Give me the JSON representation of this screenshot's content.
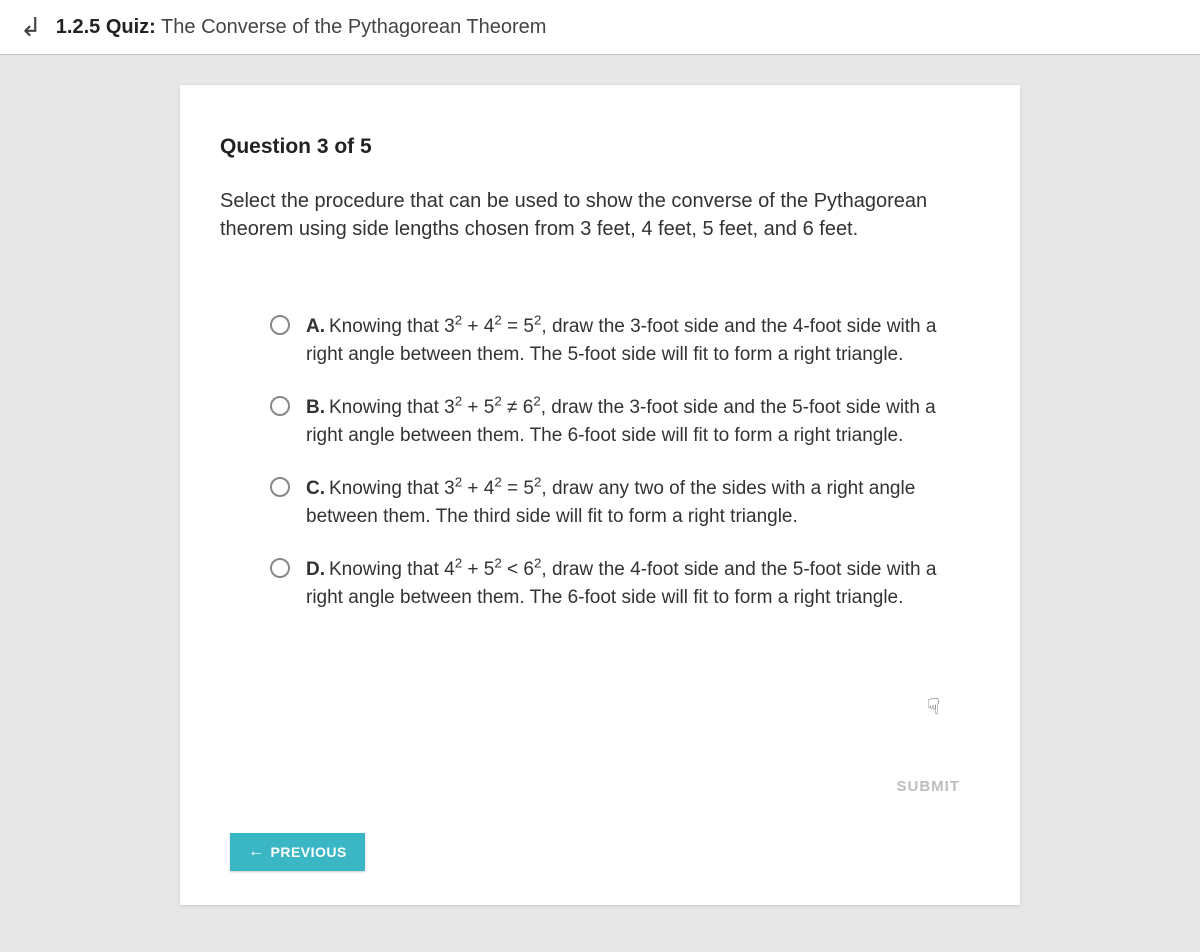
{
  "header": {
    "section_number": "1.2.5",
    "label": "Quiz:",
    "title": "The Converse of the Pythagorean Theorem"
  },
  "question": {
    "index_label": "Question 3 of 5",
    "prompt": "Select the procedure that can be used to show the converse of the Pythagorean theorem using side lengths chosen from 3 feet, 4 feet, 5 feet, and 6 feet."
  },
  "options": [
    {
      "letter": "A.",
      "pre": "Knowing that 3",
      "e1": "2",
      "mid1": " + 4",
      "e2": "2",
      "mid2": " = 5",
      "e3": "2",
      "post": ", draw the 3-foot side and the 4-foot side with a right angle between them. The 5-foot side will fit to form a right triangle."
    },
    {
      "letter": "B.",
      "pre": "Knowing that 3",
      "e1": "2",
      "mid1": " + 5",
      "e2": "2",
      "mid2": " ≠ 6",
      "e3": "2",
      "post": ", draw the 3-foot side and the 5-foot side with a right angle between them. The 6-foot side will fit to form a right triangle."
    },
    {
      "letter": "C.",
      "pre": "Knowing that 3",
      "e1": "2",
      "mid1": " + 4",
      "e2": "2",
      "mid2": " = 5",
      "e3": "2",
      "post": ", draw any two of the sides with a right angle between them. The third side will fit to form a right triangle."
    },
    {
      "letter": "D.",
      "pre": "Knowing that 4",
      "e1": "2",
      "mid1": " + 5",
      "e2": "2",
      "mid2": " < 6",
      "e3": "2",
      "post": ", draw the 4-foot side and the 5-foot side with a right angle between them. The 6-foot side will fit to form a right triangle."
    }
  ],
  "buttons": {
    "previous": "PREVIOUS",
    "submit": "SUBMIT"
  },
  "colors": {
    "page_bg": "#e8e8e8",
    "card_bg": "#ffffff",
    "previous_btn_bg": "#3bb6c4",
    "submit_color": "#bdbdbd",
    "text_primary": "#333333"
  }
}
